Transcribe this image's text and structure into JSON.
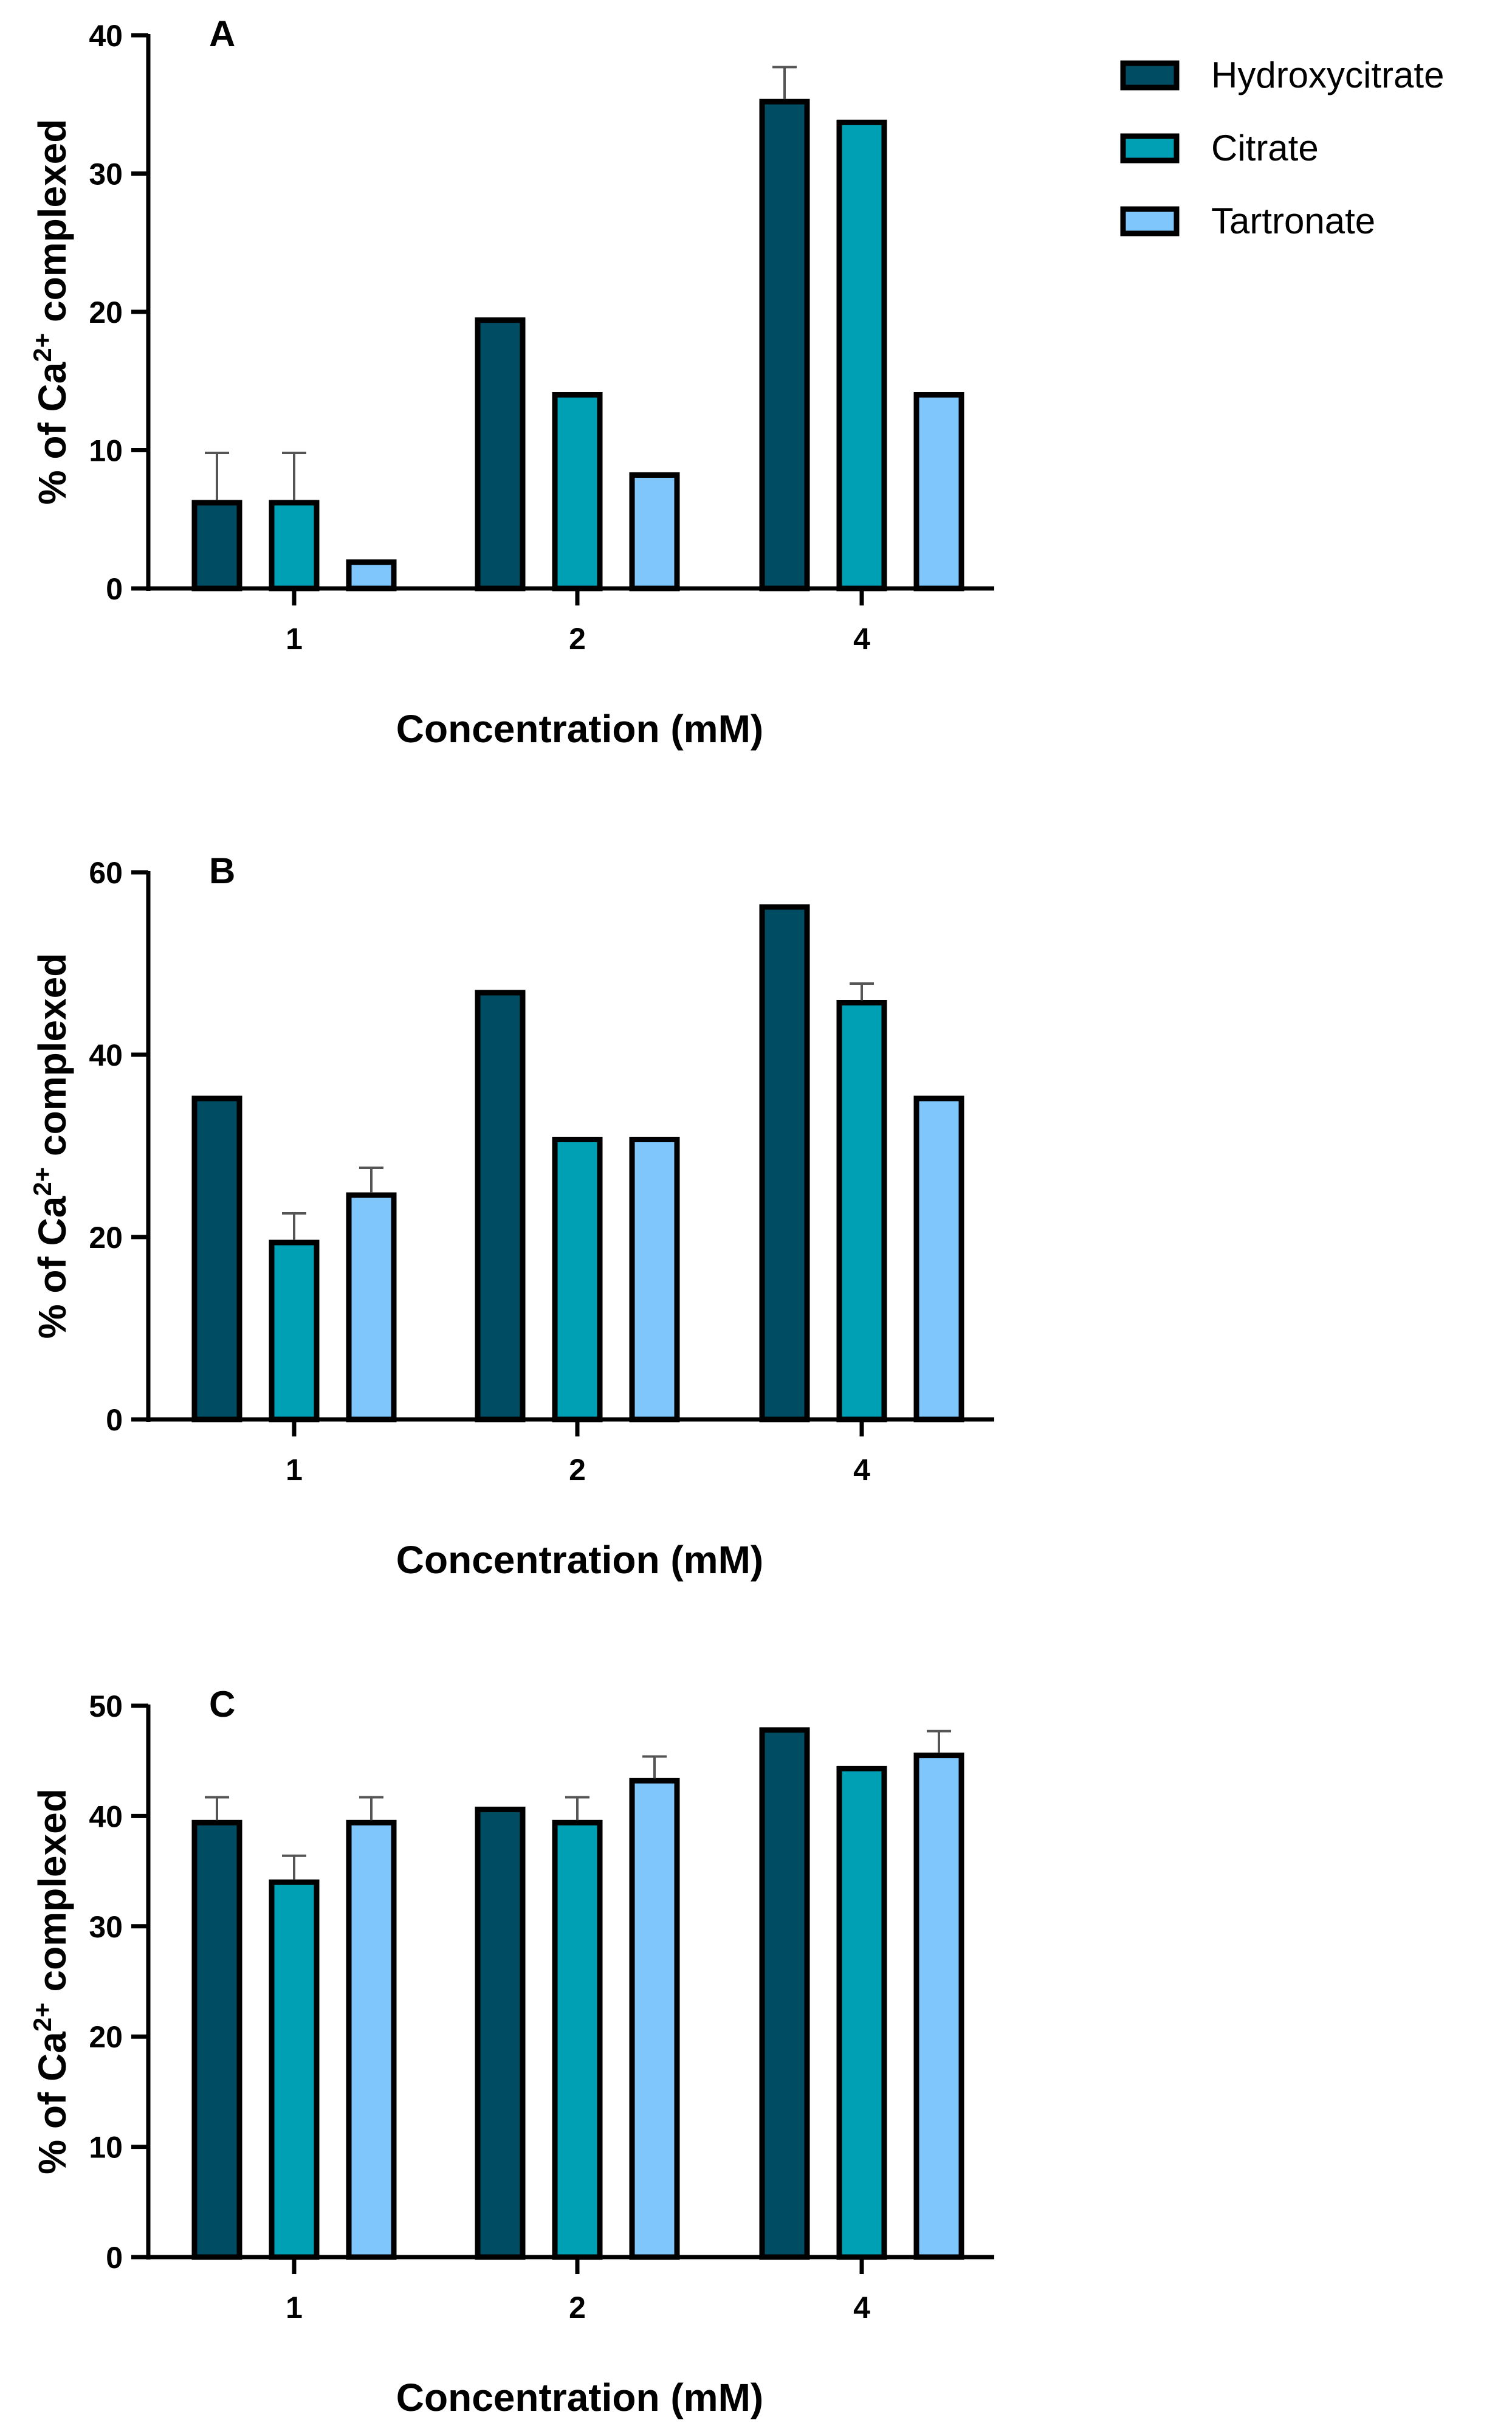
{
  "legend": [
    {
      "label": "Hydroxycitrate",
      "color": "#004c63"
    },
    {
      "label": "Citrate",
      "color": "#00a0b4"
    },
    {
      "label": "Tartronate",
      "color": "#7fc6fc"
    }
  ],
  "chart_data": [
    {
      "type": "bar",
      "panel": "A",
      "categories": [
        "1",
        "2",
        "4"
      ],
      "xlabel": "Concentration (mM)",
      "ylabel_parts": {
        "prefix": "% of Ca",
        "superscript": "2+",
        "suffix": " complexed"
      },
      "ylim": [
        0,
        40
      ],
      "yticks": [
        0,
        10,
        20,
        30,
        40
      ],
      "series": [
        {
          "name": "Hydroxycitrate",
          "values": [
            6.2,
            19.4,
            35.2
          ],
          "errors": [
            3.6,
            0,
            2.5
          ]
        },
        {
          "name": "Citrate",
          "values": [
            6.2,
            14.0,
            33.7
          ],
          "errors": [
            3.6,
            0,
            0
          ]
        },
        {
          "name": "Tartronate",
          "values": [
            1.9,
            8.2,
            14.0
          ],
          "errors": [
            0,
            0,
            0
          ]
        }
      ]
    },
    {
      "type": "bar",
      "panel": "B",
      "categories": [
        "1",
        "2",
        "4"
      ],
      "xlabel": "Concentration (mM)",
      "ylabel_parts": {
        "prefix": "% of Ca",
        "superscript": "2+",
        "suffix": " complexed"
      },
      "ylim": [
        0,
        60
      ],
      "yticks": [
        0,
        20,
        40,
        60
      ],
      "series": [
        {
          "name": "Hydroxycitrate",
          "values": [
            35.2,
            46.8,
            56.2
          ],
          "errors": [
            0,
            0,
            0
          ]
        },
        {
          "name": "Citrate",
          "values": [
            19.4,
            30.7,
            45.7
          ],
          "errors": [
            3.2,
            0,
            2.1
          ]
        },
        {
          "name": "Tartronate",
          "values": [
            24.6,
            30.7,
            35.2
          ],
          "errors": [
            3.0,
            0,
            0
          ]
        }
      ]
    },
    {
      "type": "bar",
      "panel": "C",
      "categories": [
        "1",
        "2",
        "4"
      ],
      "xlabel": "Concentration (mM)",
      "ylabel_parts": {
        "prefix": "% of Ca",
        "superscript": "2+",
        "suffix": " complexed"
      },
      "ylim": [
        0,
        50
      ],
      "yticks": [
        0,
        10,
        20,
        30,
        40,
        50
      ],
      "series": [
        {
          "name": "Hydroxycitrate",
          "values": [
            39.4,
            40.6,
            47.8
          ],
          "errors": [
            2.3,
            0,
            0
          ]
        },
        {
          "name": "Citrate",
          "values": [
            34.0,
            39.4,
            44.3
          ],
          "errors": [
            2.4,
            2.3,
            0
          ]
        },
        {
          "name": "Tartronate",
          "values": [
            39.4,
            43.2,
            45.5
          ],
          "errors": [
            2.3,
            2.2,
            2.2
          ]
        }
      ]
    }
  ]
}
